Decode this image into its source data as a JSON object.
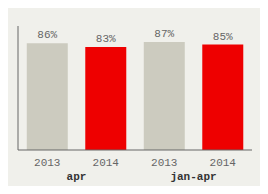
{
  "chart_data": {
    "type": "bar",
    "categories": [
      "2013",
      "2014",
      "2013",
      "2014"
    ],
    "values": [
      86,
      83,
      87,
      85
    ],
    "colors": [
      "#cccbbf",
      "#ee0000",
      "#cccbbf",
      "#ee0000"
    ],
    "data_labels": true,
    "value_labels": [
      "86%",
      "83%",
      "87%",
      "85%"
    ],
    "annotations": [
      "apr",
      "jan-apr"
    ],
    "ylim": [
      0,
      100
    ],
    "tick_labels": "x"
  }
}
